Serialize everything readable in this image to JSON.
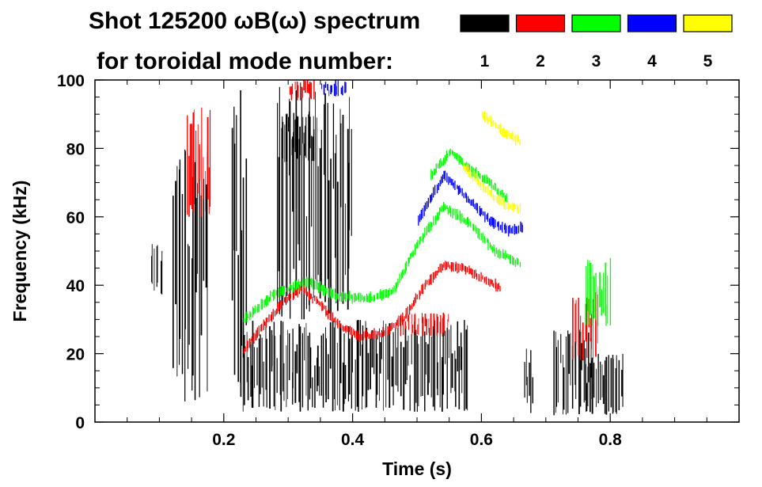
{
  "chart_data": {
    "type": "scatter",
    "title_line1": "Shot 125200 ωB(ω) spectrum",
    "title_line2": "for toroidal mode number:",
    "xlabel": "Time (s)",
    "ylabel": "Frequency (kHz)",
    "xlim": [
      0.0,
      1.0
    ],
    "ylim": [
      0,
      100
    ],
    "xticks": [
      0.2,
      0.4,
      0.6,
      0.8
    ],
    "xtick_labels": [
      "0.2",
      "0.4",
      "0.6",
      "0.8"
    ],
    "yticks": [
      0,
      20,
      40,
      60,
      80,
      100
    ],
    "ytick_labels": [
      "0",
      "20",
      "40",
      "60",
      "80",
      "100"
    ],
    "legend": [
      {
        "label": "1",
        "color": "#000000"
      },
      {
        "label": "2",
        "color": "#ff0000"
      },
      {
        "label": "3",
        "color": "#00ff00"
      },
      {
        "label": "4",
        "color": "#0000ff"
      },
      {
        "label": "5",
        "color": "#ffff00"
      }
    ],
    "series": [
      {
        "name": "n=1",
        "color": "#000000",
        "regions": [
          {
            "x": [
              0.085,
              0.105
            ],
            "y": [
              36,
              54
            ]
          },
          {
            "x": [
              0.12,
              0.175
            ],
            "y": [
              6,
              80
            ]
          },
          {
            "x": [
              0.21,
              0.235
            ],
            "y": [
              6,
              98
            ]
          },
          {
            "x": [
              0.225,
              0.58
            ],
            "y": [
              3,
              30
            ]
          },
          {
            "x": [
              0.29,
              0.34
            ],
            "y": [
              76,
              90
            ]
          },
          {
            "x": [
              0.28,
              0.4
            ],
            "y": [
              30,
              98
            ]
          },
          {
            "x": [
              0.665,
              0.68
            ],
            "y": [
              2,
              22
            ]
          },
          {
            "x": [
              0.71,
              0.77
            ],
            "y": [
              2,
              27
            ]
          },
          {
            "x": [
              0.76,
              0.82
            ],
            "y": [
              2,
              20
            ]
          }
        ]
      },
      {
        "name": "n=2",
        "color": "#ff0000",
        "ridges": [
          {
            "x": [
              0.23,
              0.26,
              0.29,
              0.32,
              0.35,
              0.38,
              0.41,
              0.45,
              0.48,
              0.51,
              0.54,
              0.57,
              0.6,
              0.63
            ],
            "y": [
              21,
              28,
              35,
              39,
              34,
              28,
              25,
              26,
              31,
              40,
              46,
              45,
              42,
              39
            ]
          }
        ],
        "regions": [
          {
            "x": [
              0.14,
              0.18
            ],
            "y": [
              60,
              92
            ]
          },
          {
            "x": [
              0.3,
              0.34
            ],
            "y": [
              94,
              100
            ]
          },
          {
            "x": [
              0.47,
              0.55
            ],
            "y": [
              25,
              32
            ]
          },
          {
            "x": [
              0.74,
              0.78
            ],
            "y": [
              18,
              38
            ]
          }
        ]
      },
      {
        "name": "n=3",
        "color": "#00ff00",
        "ridges": [
          {
            "x": [
              0.23,
              0.28,
              0.33,
              0.37,
              0.42,
              0.46,
              0.5,
              0.54,
              0.58,
              0.62,
              0.66
            ],
            "y": [
              30,
              38,
              41,
              37,
              36,
              38,
              52,
              63,
              58,
              50,
              46
            ]
          },
          {
            "x": [
              0.52,
              0.55,
              0.58,
              0.61,
              0.64
            ],
            "y": [
              72,
              79,
              74,
              70,
              65
            ]
          }
        ],
        "regions": [
          {
            "x": [
              0.76,
              0.8
            ],
            "y": [
              28,
              48
            ]
          }
        ]
      },
      {
        "name": "n=4",
        "color": "#0000ff",
        "ridges": [
          {
            "x": [
              0.5,
              0.54,
              0.58,
              0.61,
              0.64,
              0.665
            ],
            "y": [
              59,
              72,
              65,
              59,
              56,
              57
            ]
          }
        ],
        "regions": [
          {
            "x": [
              0.35,
              0.39
            ],
            "y": [
              95,
              100
            ]
          }
        ]
      },
      {
        "name": "n=5",
        "color": "#ffff00",
        "ridges": [
          {
            "x": [
              0.57,
              0.6,
              0.63,
              0.66
            ],
            "y": [
              75,
              69,
              64,
              62
            ]
          },
          {
            "x": [
              0.6,
              0.63,
              0.66
            ],
            "y": [
              90,
              85,
              82
            ]
          }
        ]
      }
    ]
  }
}
